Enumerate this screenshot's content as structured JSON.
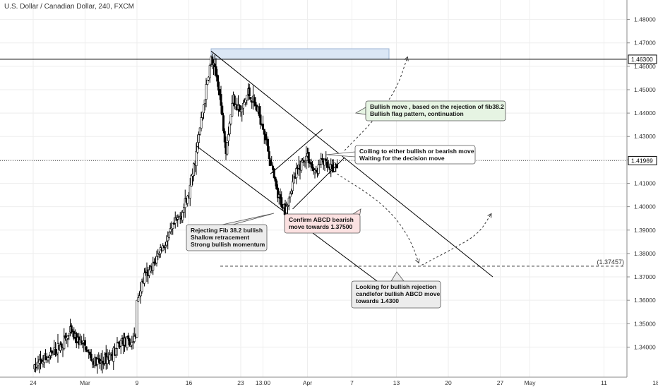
{
  "header": {
    "symbol_title": "U.S. Dollar / Canadian Dollar, 240, FXCM"
  },
  "colors": {
    "up_candle": "#ffffff",
    "down_candle": "#000000",
    "wick": "#000000",
    "grid": "#eeeeee",
    "resistance_zone": "#dbe7f5",
    "note_green": "#e6f4e3",
    "note_red": "#fbe1e1",
    "note_gray": "#ececec"
  },
  "chart_data": {
    "type": "candlestick",
    "timeframe": "240",
    "y_axis": {
      "min": 1.335,
      "max": 1.485,
      "ticks": [
        "1.34000",
        "1.35000",
        "1.36000",
        "1.37000",
        "1.38000",
        "1.39000",
        "1.40000",
        "1.41000",
        "1.42000",
        "1.43000",
        "1.44000",
        "1.45000",
        "1.46000",
        "1.47000",
        "1.48000"
      ]
    },
    "x_axis": {
      "ticks": [
        {
          "label": "24",
          "date": "2020-02-24"
        },
        {
          "label": "Mar",
          "date": "2020-03-02"
        },
        {
          "label": "9",
          "date": "2020-03-09"
        },
        {
          "label": "16",
          "date": "2020-03-16"
        },
        {
          "label": "23",
          "date": "2020-03-23"
        },
        {
          "label": "13:00",
          "date": "2020-03-26"
        },
        {
          "label": "Apr",
          "date": "2020-04-01"
        },
        {
          "label": "7",
          "date": "2020-04-07"
        },
        {
          "label": "13",
          "date": "2020-04-13"
        },
        {
          "label": "20",
          "date": "2020-04-20"
        },
        {
          "label": "27",
          "date": "2020-04-27"
        },
        {
          "label": "May",
          "date": "2020-05-01"
        },
        {
          "label": "11",
          "date": "2020-05-11"
        },
        {
          "label": "18",
          "date": "2020-05-18"
        }
      ]
    },
    "price_levels": [
      {
        "label": "1.46300",
        "value": 1.463,
        "style": "solid"
      },
      {
        "label": "1.41969",
        "value": 1.41969,
        "style": "dotted"
      },
      {
        "label": "(1.37457)",
        "value": 1.37457,
        "style": "dashed"
      }
    ],
    "resistance_zone": {
      "from_date": "2020-03-19",
      "to_date": "2020-04-12",
      "low": 1.463,
      "high": 1.4675
    },
    "path_points": [
      {
        "date": "2020-02-24",
        "price": 1.331
      },
      {
        "date": "2020-02-27",
        "price": 1.338
      },
      {
        "date": "2020-02-29",
        "price": 1.346
      },
      {
        "date": "2020-03-02",
        "price": 1.34
      },
      {
        "date": "2020-03-03",
        "price": 1.334
      },
      {
        "date": "2020-03-04",
        "price": 1.333
      },
      {
        "date": "2020-03-06",
        "price": 1.338
      },
      {
        "date": "2020-03-07",
        "price": 1.343
      },
      {
        "date": "2020-03-08",
        "price": 1.341
      },
      {
        "date": "2020-03-08.8",
        "price": 1.344
      },
      {
        "date": "2020-03-09",
        "price": 1.36
      },
      {
        "date": "2020-03-10",
        "price": 1.37
      },
      {
        "date": "2020-03-11",
        "price": 1.373
      },
      {
        "date": "2020-03-12",
        "price": 1.381
      },
      {
        "date": "2020-03-13",
        "price": 1.385
      },
      {
        "date": "2020-03-14",
        "price": 1.392
      },
      {
        "date": "2020-03-15",
        "price": 1.397
      },
      {
        "date": "2020-03-16",
        "price": 1.405
      },
      {
        "date": "2020-03-17",
        "price": 1.423
      },
      {
        "date": "2020-03-18",
        "price": 1.444
      },
      {
        "date": "2020-03-19",
        "price": 1.463
      },
      {
        "date": "2020-03-20",
        "price": 1.452
      },
      {
        "date": "2020-03-21",
        "price": 1.425
      },
      {
        "date": "2020-03-22",
        "price": 1.447
      },
      {
        "date": "2020-03-23",
        "price": 1.44
      },
      {
        "date": "2020-03-24",
        "price": 1.449
      },
      {
        "date": "2020-03-25",
        "price": 1.443
      },
      {
        "date": "2020-03-26",
        "price": 1.435
      },
      {
        "date": "2020-03-27",
        "price": 1.419
      },
      {
        "date": "2020-03-28",
        "price": 1.404
      },
      {
        "date": "2020-03-29",
        "price": 1.399
      },
      {
        "date": "2020-03-30",
        "price": 1.41
      },
      {
        "date": "2020-03-31",
        "price": 1.418
      },
      {
        "date": "2020-04-01",
        "price": 1.422
      },
      {
        "date": "2020-04-02",
        "price": 1.414
      },
      {
        "date": "2020-04-03",
        "price": 1.42
      },
      {
        "date": "2020-04-04",
        "price": 1.415
      },
      {
        "date": "2020-04-05",
        "price": 1.418
      }
    ],
    "candle_seed": 7,
    "trendlines": [
      {
        "name": "falling-channel-upper",
        "from": {
          "date": "2020-03-19",
          "price": 1.4665
        },
        "to": {
          "date": "2020-04-26",
          "price": 1.37
        }
      },
      {
        "name": "falling-channel-lower",
        "from": {
          "date": "2020-03-17",
          "price": 1.426
        },
        "to": {
          "date": "2020-04-13",
          "price": 1.362
        }
      },
      {
        "name": "flag-lower",
        "from": {
          "date": "2020-03-30",
          "price": 1.399
        },
        "to": {
          "date": "2020-04-06",
          "price": 1.421
        }
      },
      {
        "name": "flag-upper",
        "from": {
          "date": "2020-03-27",
          "price": 1.414
        },
        "to": {
          "date": "2020-04-03",
          "price": 1.433
        }
      }
    ],
    "projections": [
      {
        "name": "bullish-projection-up",
        "points": [
          {
            "date": "2020-04-06",
            "price": 1.424
          },
          {
            "date": "2020-04-10",
            "price": 1.437
          },
          {
            "date": "2020-04-13",
            "price": 1.45
          },
          {
            "date": "2020-04-14.5",
            "price": 1.464
          }
        ]
      },
      {
        "name": "bearish-projection-down",
        "points": [
          {
            "date": "2020-04-05",
            "price": 1.414
          },
          {
            "date": "2020-04-10",
            "price": 1.404
          },
          {
            "date": "2020-04-13",
            "price": 1.395
          },
          {
            "date": "2020-04-15",
            "price": 1.385
          },
          {
            "date": "2020-04-16",
            "price": 1.376
          }
        ]
      },
      {
        "name": "bullish-abcd-projection",
        "points": [
          {
            "date": "2020-04-16.4",
            "price": 1.375
          },
          {
            "date": "2020-04-20",
            "price": 1.381
          },
          {
            "date": "2020-04-24",
            "price": 1.388
          },
          {
            "date": "2020-04-25.8",
            "price": 1.397
          }
        ]
      }
    ],
    "annotations": [
      {
        "name": "note-bullish-move",
        "lines": [
          "Bullish move , based on the rejection of fib38.2",
          "Bullish flag pattern, continuation"
        ],
        "fill": "note_green"
      },
      {
        "name": "note-coiling",
        "lines": [
          "Coiling to either bullish or bearish move",
          "Waiting for the decision move"
        ],
        "fill": "white"
      },
      {
        "name": "note-rejecting-fib",
        "lines": [
          "Rejecting Fib 38.2 bullish",
          "Shallow retracement",
          "Strong bullish momentum"
        ],
        "fill": "note_gray"
      },
      {
        "name": "note-confirm-abcd",
        "lines": [
          "Confirm ABCD bearish",
          "move towards 1.37500"
        ],
        "fill": "note_red"
      },
      {
        "name": "note-looking-for-bullish",
        "lines": [
          "Looking for bullish rejection",
          "candlefor bullish ABCD move",
          "towards 1.4300"
        ],
        "fill": "note_gray"
      }
    ]
  }
}
